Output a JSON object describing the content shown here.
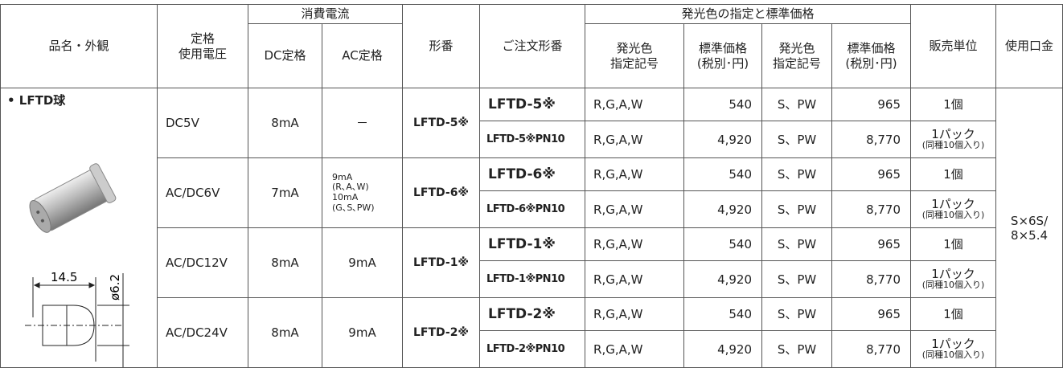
{
  "header": {
    "product": "品名・外観",
    "voltage": "定格\n使用電圧",
    "current": "消費電流",
    "dc": "DC定格",
    "ac": "AC定格",
    "model": "形番",
    "order": "ご注文形番",
    "color_price": "発光色の指定と標準価格",
    "color1": "発光色\n指定記号",
    "price1": "標準価格\n(税別･円)",
    "color2": "発光色\n指定記号",
    "price2": "標準価格\n(税別･円)",
    "unit": "販売単位",
    "socket": "使用口金"
  },
  "product": {
    "name": "• LFTD球",
    "length": "14.5",
    "diameter": "ø6.2"
  },
  "socket": "S×6S/\n8×5.4",
  "groups": [
    {
      "voltage": "DC5V",
      "dc": "8mA",
      "ac": "－",
      "model": "LFTD-5※"
    },
    {
      "voltage": "AC/DC6V",
      "dc": "7mA",
      "ac": "9mA\n(R､A､W)\n10mA\n(G､S､PW)",
      "model": "LFTD-6※"
    },
    {
      "voltage": "AC/DC12V",
      "dc": "8mA",
      "ac": "9mA",
      "model": "LFTD-1※"
    },
    {
      "voltage": "AC/DC24V",
      "dc": "8mA",
      "ac": "9mA",
      "model": "LFTD-2※"
    }
  ],
  "rows": [
    {
      "order": "LFTD-5※",
      "color1": "R,G,A,W",
      "price1": "540",
      "color2": "S、PW",
      "price2": "965",
      "unit": "1個"
    },
    {
      "order": "LFTD-5※PN10",
      "color1": "R,G,A,W",
      "price1": "4,920",
      "color2": "S、PW",
      "price2": "8,770",
      "unit": "1パック",
      "unit_note": "(同種10個入り)"
    },
    {
      "order": "LFTD-6※",
      "color1": "R,G,A,W",
      "price1": "540",
      "color2": "S、PW",
      "price2": "965",
      "unit": "1個"
    },
    {
      "order": "LFTD-6※PN10",
      "color1": "R,G,A,W",
      "price1": "4,920",
      "color2": "S、PW",
      "price2": "8,770",
      "unit": "1パック",
      "unit_note": "(同種10個入り)"
    },
    {
      "order": "LFTD-1※",
      "color1": "R,G,A,W",
      "price1": "540",
      "color2": "S、PW",
      "price2": "965",
      "unit": "1個"
    },
    {
      "order": "LFTD-1※PN10",
      "color1": "R,G,A,W",
      "price1": "4,920",
      "color2": "S、PW",
      "price2": "8,770",
      "unit": "1パック",
      "unit_note": "(同種10個入り)"
    },
    {
      "order": "LFTD-2※",
      "color1": "R,G,A,W",
      "price1": "540",
      "color2": "S、PW",
      "price2": "965",
      "unit": "1個"
    },
    {
      "order": "LFTD-2※PN10",
      "color1": "R,G,A,W",
      "price1": "4,920",
      "color2": "S、PW",
      "price2": "8,770",
      "unit": "1パック",
      "unit_note": "(同種10個入り)"
    }
  ]
}
